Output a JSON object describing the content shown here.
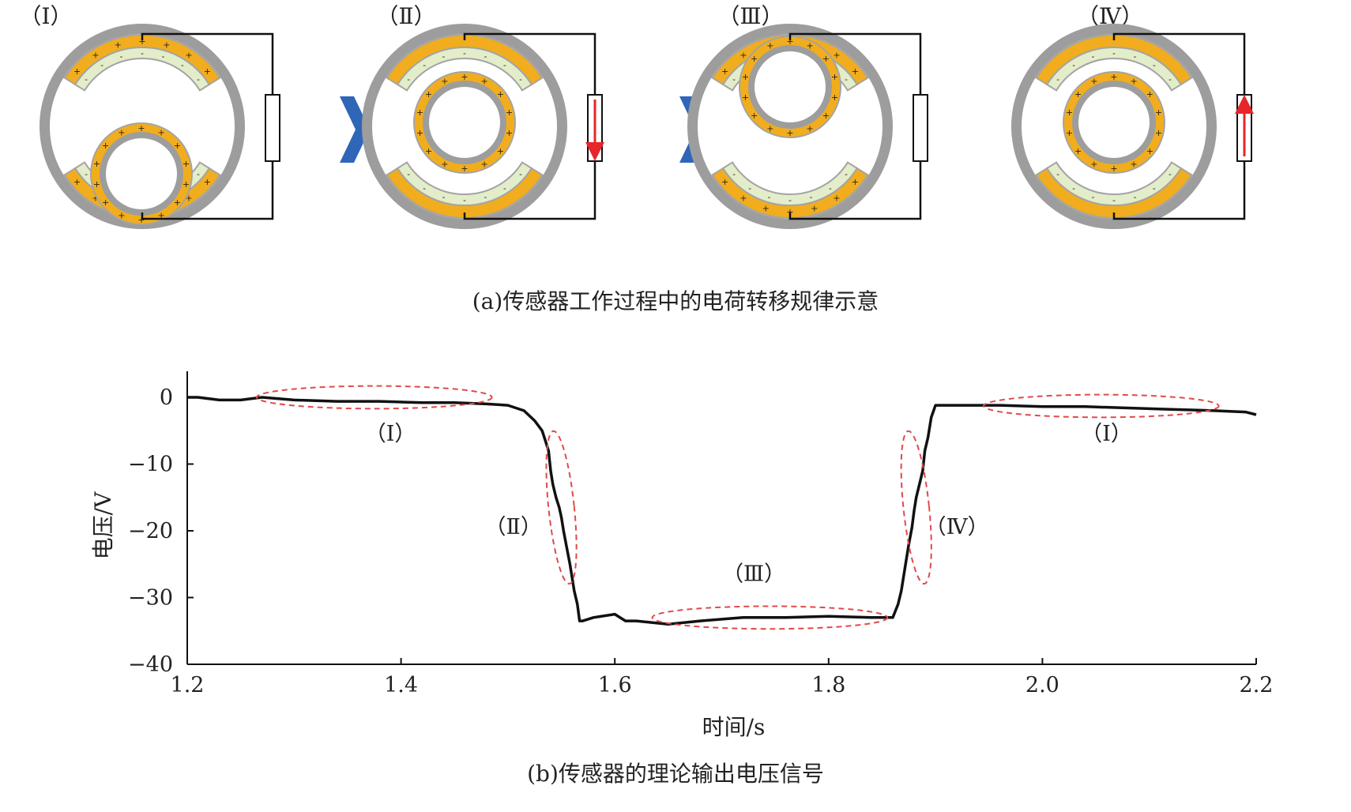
{
  "panel_a": {
    "stage_labels": [
      "（Ⅰ）",
      "（Ⅱ）",
      "（Ⅲ）",
      "（Ⅳ）"
    ],
    "charge_plus": "+",
    "charge_minus": "-",
    "caption": "(a)传感器工作过程中的电荷转移规律示意",
    "colors": {
      "housing": "#9d9d9d",
      "electrode": "#f1ad1d",
      "dielectric": "#e3edc9",
      "arrow": "#2f66b8",
      "current": "#e8252a"
    }
  },
  "panel_b": {
    "caption": "(b)传感器的理论输出电压信号"
  },
  "chart_data": {
    "type": "line",
    "xlabel": "时间/s",
    "ylabel": "电压/V",
    "xlim": [
      1.2,
      2.2
    ],
    "ylim": [
      -40,
      4
    ],
    "x_ticks": [
      "1.2",
      "1.4",
      "1.6",
      "1.8",
      "2.0",
      "2.2"
    ],
    "y_ticks": [
      "0",
      "-10",
      "-20",
      "-30",
      "-40"
    ],
    "grid": false,
    "series": [
      {
        "color": "#111111",
        "x": [
          1.2,
          1.21,
          1.23,
          1.25,
          1.27,
          1.3,
          1.34,
          1.38,
          1.42,
          1.45,
          1.48,
          1.5,
          1.515,
          1.525,
          1.532,
          1.535,
          1.538,
          1.54,
          1.542,
          1.545,
          1.548,
          1.55,
          1.552,
          1.555,
          1.558,
          1.56,
          1.562,
          1.565,
          1.567,
          1.57,
          1.58,
          1.6,
          1.61,
          1.62,
          1.65,
          1.68,
          1.72,
          1.76,
          1.8,
          1.84,
          1.86,
          1.865,
          1.868,
          1.87,
          1.872,
          1.875,
          1.878,
          1.88,
          1.882,
          1.885,
          1.888,
          1.89,
          1.893,
          1.896,
          1.9,
          1.93,
          1.96,
          2.0,
          2.04,
          2.08,
          2.12,
          2.16,
          2.19,
          2.2
        ],
        "values": [
          0,
          0,
          -0.4,
          -0.4,
          0,
          -0.4,
          -0.6,
          -0.6,
          -0.8,
          -0.8,
          -1.0,
          -1.2,
          -2.0,
          -3.5,
          -5.0,
          -6.5,
          -8.0,
          -11.0,
          -13.0,
          -15.0,
          -16.5,
          -18.0,
          -20.0,
          -22.5,
          -25.0,
          -27.0,
          -29.0,
          -31.0,
          -33.5,
          -33.5,
          -33.0,
          -32.5,
          -33.5,
          -33.5,
          -34.0,
          -33.5,
          -33.0,
          -33.0,
          -32.8,
          -33.0,
          -33.0,
          -31.0,
          -29.0,
          -27.0,
          -25.0,
          -22.0,
          -19.5,
          -17.0,
          -15.0,
          -13.0,
          -11.0,
          -8.0,
          -6.0,
          -3.0,
          -1.2,
          -1.2,
          -1.2,
          -1.4,
          -1.4,
          -1.6,
          -1.8,
          -2.0,
          -2.2,
          -2.6
        ]
      }
    ],
    "annotations": [
      {
        "label": "（Ⅰ）",
        "x": 1.39,
        "y": -6.5
      },
      {
        "label": "（Ⅱ）",
        "x": 1.505,
        "y": -20.5
      },
      {
        "label": "（Ⅲ）",
        "x": 1.73,
        "y": -27.5
      },
      {
        "label": "（Ⅳ）",
        "x": 1.92,
        "y": -20.5
      },
      {
        "label": "（Ⅰ）",
        "x": 2.06,
        "y": -6.5
      }
    ],
    "highlight_ellipses": [
      {
        "cx": 1.375,
        "cy": 0.0,
        "rx": 0.11,
        "ry": 1.7
      },
      {
        "cx": 1.55,
        "cy": -16.5,
        "rx": 0.012,
        "ry": 11.5
      },
      {
        "cx": 1.745,
        "cy": -33.0,
        "rx": 0.11,
        "ry": 1.7
      },
      {
        "cx": 1.882,
        "cy": -16.5,
        "rx": 0.012,
        "ry": 11.5
      },
      {
        "cx": 2.055,
        "cy": -1.3,
        "rx": 0.11,
        "ry": 1.7
      }
    ],
    "highlight_color": "#e04a4a"
  }
}
